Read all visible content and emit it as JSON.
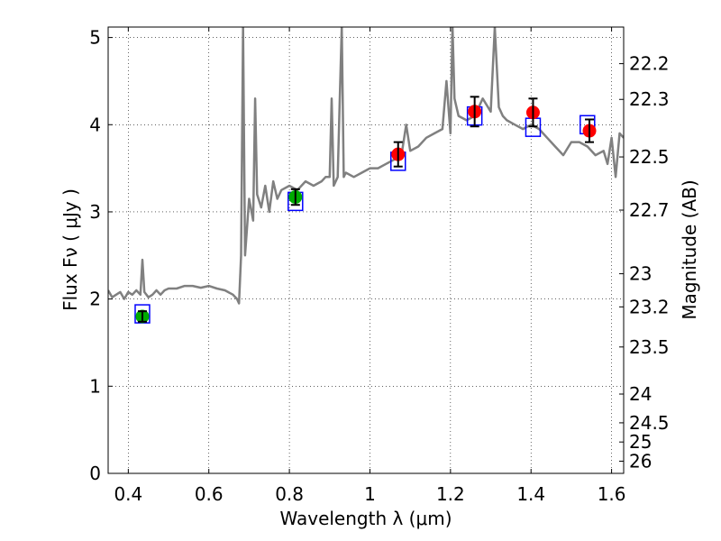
{
  "chart_data": {
    "type": "scatter",
    "xlabel": "Wavelength  λ (μm)",
    "ylabel": "Flux  Fν  ( μJy )",
    "y2label": "Magnitude (AB)",
    "xlim": [
      0.35,
      1.63
    ],
    "ylim": [
      0,
      5.12
    ],
    "grid": true,
    "x_ticks": [
      {
        "value": 0.4,
        "label": "0.4"
      },
      {
        "value": 0.6,
        "label": "0.6"
      },
      {
        "value": 0.8,
        "label": "0.8"
      },
      {
        "value": 1.0,
        "label": "1"
      },
      {
        "value": 1.2,
        "label": "1.2"
      },
      {
        "value": 1.4,
        "label": "1.4"
      },
      {
        "value": 1.6,
        "label": "1.6"
      }
    ],
    "y_ticks": [
      {
        "value": 0,
        "label": "0"
      },
      {
        "value": 1,
        "label": "1"
      },
      {
        "value": 2,
        "label": "2"
      },
      {
        "value": 3,
        "label": "3"
      },
      {
        "value": 4,
        "label": "4"
      },
      {
        "value": 5,
        "label": "5"
      }
    ],
    "y2_ticks": [
      {
        "label": "22.2",
        "flux": 4.7
      },
      {
        "label": "22.3",
        "flux": 4.29
      },
      {
        "label": "22.5",
        "flux": 3.63
      },
      {
        "label": "22.7",
        "flux": 3.02
      },
      {
        "label": "23",
        "flux": 2.29
      },
      {
        "label": "23.2",
        "flux": 1.91
      },
      {
        "label": "23.5",
        "flux": 1.45
      },
      {
        "label": "24",
        "flux": 0.91
      },
      {
        "label": "24.5",
        "flux": 0.58
      },
      {
        "label": "25",
        "flux": 0.36
      },
      {
        "label": "26",
        "flux": 0.14
      }
    ],
    "model_spectrum": {
      "color": "#808080",
      "x": [
        0.35,
        0.36,
        0.37,
        0.38,
        0.39,
        0.4,
        0.41,
        0.42,
        0.43,
        0.435,
        0.44,
        0.45,
        0.46,
        0.47,
        0.48,
        0.49,
        0.5,
        0.52,
        0.54,
        0.56,
        0.58,
        0.6,
        0.62,
        0.64,
        0.66,
        0.67,
        0.675,
        0.68,
        0.685,
        0.69,
        0.7,
        0.71,
        0.715,
        0.72,
        0.73,
        0.74,
        0.75,
        0.76,
        0.77,
        0.78,
        0.8,
        0.82,
        0.84,
        0.86,
        0.88,
        0.89,
        0.9,
        0.905,
        0.91,
        0.92,
        0.925,
        0.93,
        0.935,
        0.94,
        0.96,
        0.98,
        1.0,
        1.02,
        1.04,
        1.06,
        1.08,
        1.09,
        1.1,
        1.12,
        1.14,
        1.16,
        1.18,
        1.19,
        1.2,
        1.205,
        1.21,
        1.22,
        1.24,
        1.26,
        1.28,
        1.3,
        1.31,
        1.32,
        1.33,
        1.34,
        1.36,
        1.38,
        1.4,
        1.42,
        1.44,
        1.46,
        1.48,
        1.5,
        1.52,
        1.54,
        1.56,
        1.58,
        1.59,
        1.6,
        1.61,
        1.62,
        1.63
      ],
      "y": [
        2.1,
        2.02,
        2.05,
        2.08,
        2.0,
        2.08,
        2.05,
        2.1,
        2.05,
        2.45,
        2.08,
        2.02,
        2.05,
        2.1,
        2.05,
        2.1,
        2.12,
        2.12,
        2.15,
        2.15,
        2.13,
        2.15,
        2.12,
        2.1,
        2.05,
        2.0,
        1.95,
        2.5,
        5.12,
        2.5,
        3.15,
        2.9,
        4.3,
        3.2,
        3.05,
        3.3,
        3.0,
        3.35,
        3.15,
        3.25,
        3.3,
        3.25,
        3.35,
        3.3,
        3.35,
        3.4,
        3.4,
        4.3,
        3.3,
        3.4,
        4.3,
        5.12,
        3.4,
        3.45,
        3.4,
        3.45,
        3.5,
        3.5,
        3.55,
        3.6,
        3.7,
        4.0,
        3.7,
        3.75,
        3.85,
        3.9,
        3.95,
        4.5,
        3.9,
        5.12,
        4.3,
        4.1,
        4.05,
        4.1,
        4.3,
        4.15,
        5.12,
        4.2,
        4.1,
        4.05,
        4.0,
        3.95,
        4.0,
        3.95,
        3.85,
        3.75,
        3.65,
        3.8,
        3.8,
        3.75,
        3.65,
        3.7,
        3.55,
        3.85,
        3.4,
        3.9,
        3.85
      ]
    },
    "model_photometry": {
      "marker": "open-square",
      "color": "#0000ff",
      "x": [
        0.435,
        0.815,
        1.07,
        1.26,
        1.405,
        1.54
      ],
      "y": [
        1.83,
        3.12,
        3.58,
        4.1,
        3.97,
        4.0
      ]
    },
    "observed_optical": {
      "marker": "circle",
      "color": "#00aa00",
      "x": [
        0.435,
        0.815
      ],
      "y": [
        1.8,
        3.17
      ],
      "yerr": [
        0.06,
        0.09
      ]
    },
    "observed_nir": {
      "marker": "circle",
      "color": "#ff0000",
      "x": [
        1.07,
        1.26,
        1.405,
        1.545
      ],
      "y": [
        3.66,
        4.15,
        4.14,
        3.93
      ],
      "yerr": [
        0.14,
        0.17,
        0.16,
        0.13
      ]
    }
  }
}
